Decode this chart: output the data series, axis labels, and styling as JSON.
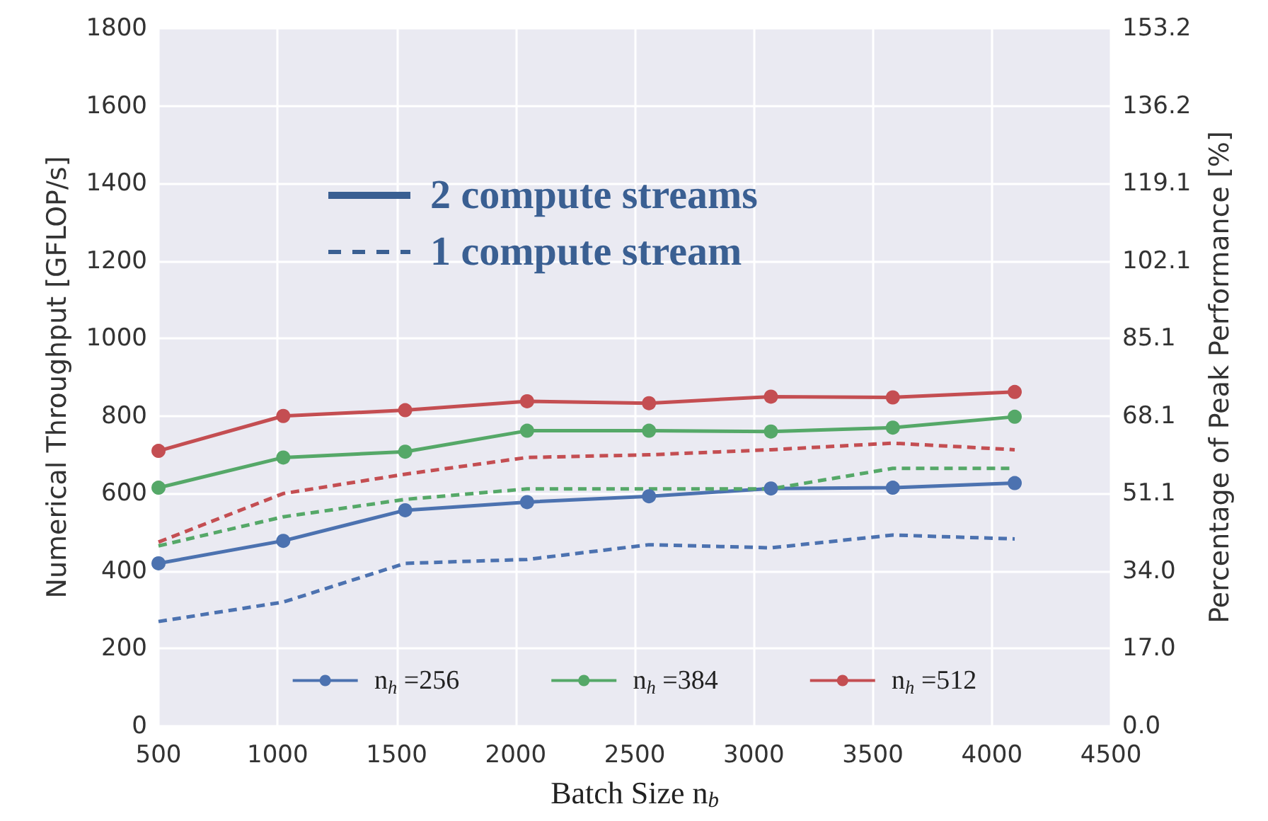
{
  "chart_data": {
    "type": "line",
    "xlabel": "Batch Size n$_{b}$",
    "ylabel": "Numerical Throughput [GFLOP/s]",
    "y2label": "Percentage of Peak Performance [%]",
    "x": [
      500,
      1024,
      1536,
      2048,
      2560,
      3072,
      3584,
      4096
    ],
    "xlim": [
      500,
      4500
    ],
    "xticks": [
      500,
      1000,
      1500,
      2000,
      2500,
      3000,
      3500,
      4000,
      4500
    ],
    "ylim": [
      0,
      1800
    ],
    "yticks": [
      0,
      200,
      400,
      600,
      800,
      1000,
      1200,
      1400,
      1600,
      1800
    ],
    "y2lim": [
      0,
      153.2
    ],
    "y2ticks": [
      {
        "value": 0,
        "label": "0.0"
      },
      {
        "value": 17.02,
        "label": "17.0"
      },
      {
        "value": 34.04,
        "label": "34.0"
      },
      {
        "value": 51.07,
        "label": "51.1"
      },
      {
        "value": 68.09,
        "label": "68.1"
      },
      {
        "value": 85.11,
        "label": "85.1"
      },
      {
        "value": 102.13,
        "label": "102.1"
      },
      {
        "value": 119.1,
        "label": "119.1"
      },
      {
        "value": 136.18,
        "label": "136.2"
      },
      {
        "value": 153.2,
        "label": "153.2"
      }
    ],
    "grid": true,
    "legend": "bottom",
    "annotations": [
      "2 compute streams",
      "1 compute stream"
    ],
    "series": [
      {
        "name": "n$_{h}$ =256",
        "color": "#4c72b0",
        "marker": "circle",
        "line_style": "solid",
        "values": [
          420,
          478,
          557,
          578,
          593,
          613,
          615,
          627
        ]
      },
      {
        "name": "n$_{h}$ =384",
        "color": "#55a868",
        "marker": "circle",
        "line_style": "solid",
        "values": [
          615,
          693,
          708,
          762,
          762,
          760,
          770,
          798
        ]
      },
      {
        "name": "n$_{h}$ =512",
        "color": "#c44e52",
        "marker": "circle",
        "line_style": "solid",
        "values": [
          710,
          800,
          815,
          838,
          833,
          850,
          848,
          862
        ]
      },
      {
        "color": "#4c72b0",
        "marker": "none",
        "line_style": "dashed",
        "values": [
          270,
          320,
          420,
          430,
          468,
          460,
          493,
          483
        ]
      },
      {
        "color": "#55a868",
        "marker": "none",
        "line_style": "dashed",
        "values": [
          465,
          540,
          585,
          612,
          612,
          612,
          665,
          665
        ]
      },
      {
        "color": "#c44e52",
        "marker": "none",
        "line_style": "dashed",
        "values": [
          475,
          600,
          650,
          693,
          700,
          713,
          730,
          713
        ]
      }
    ]
  }
}
